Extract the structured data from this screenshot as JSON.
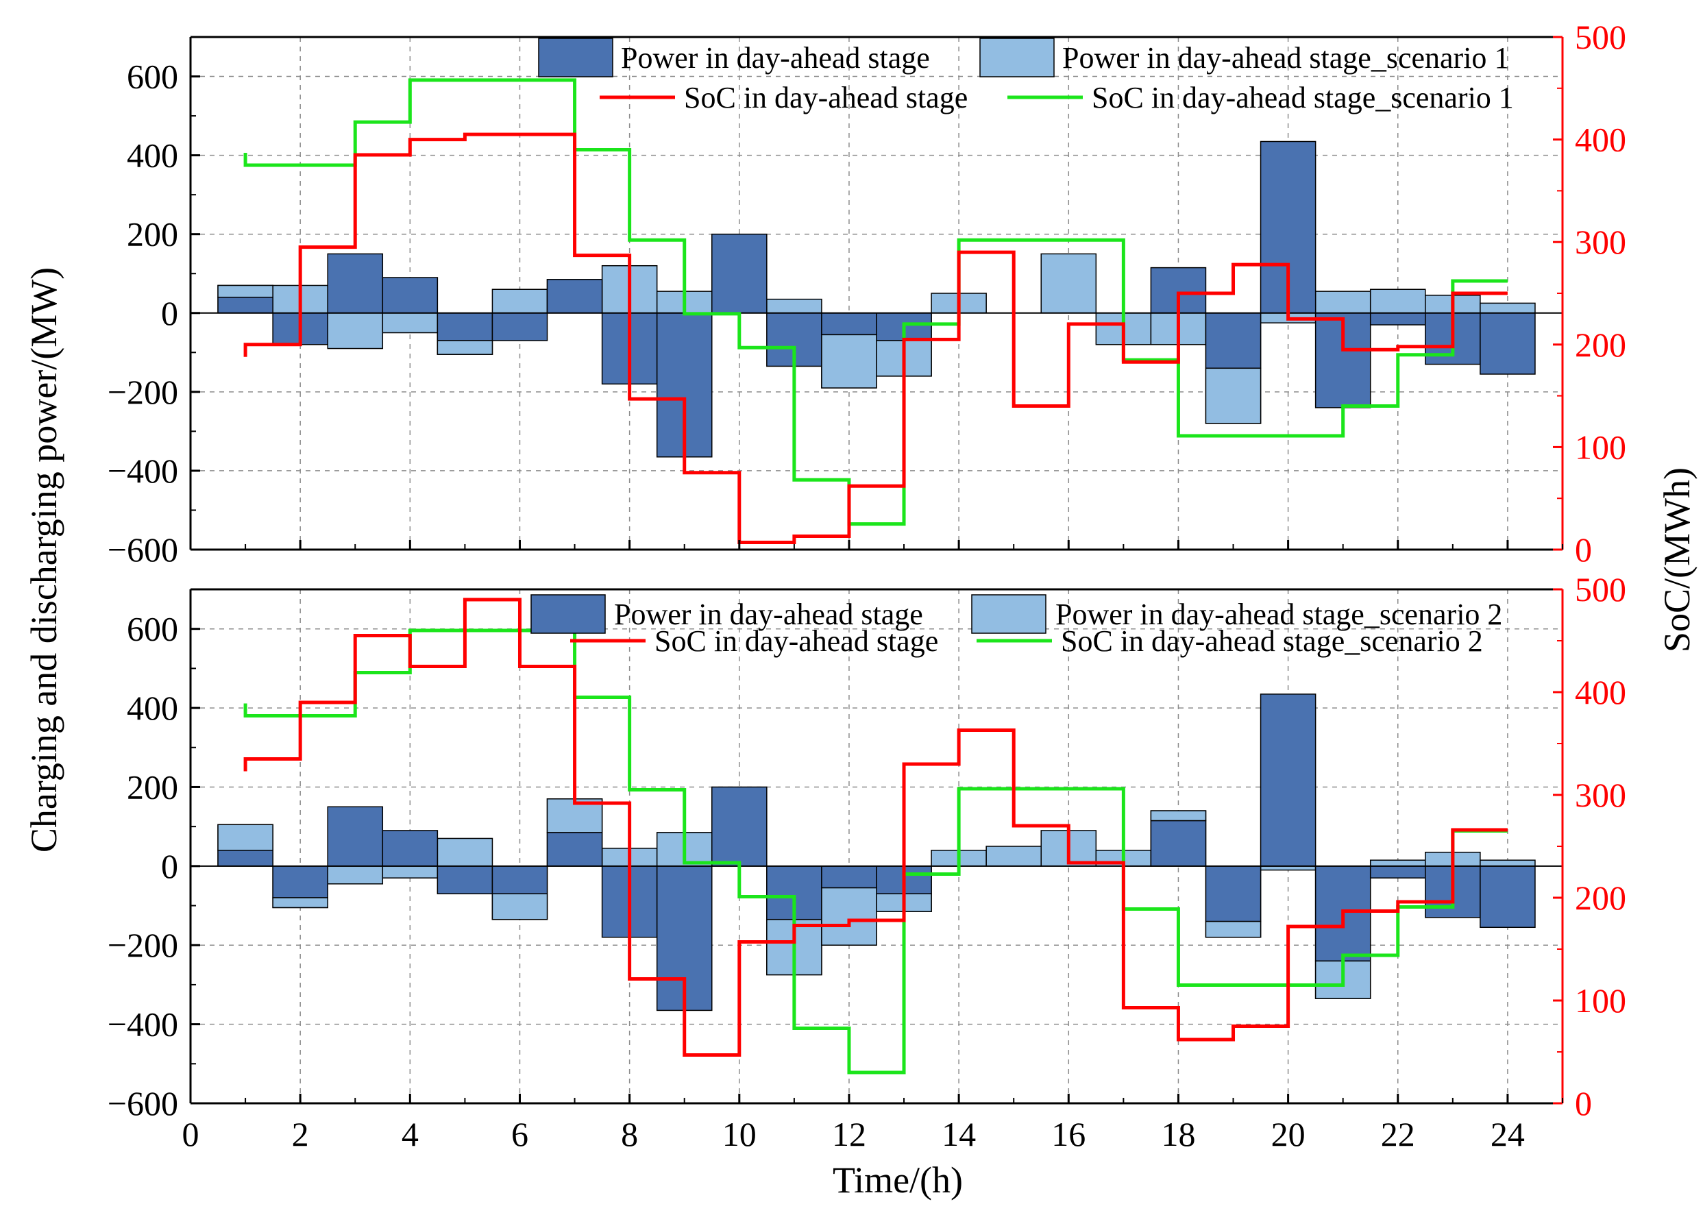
{
  "chart_data": {
    "type": "bar",
    "x_label": "Time/(h)",
    "y_left_label": "Charging and discharging power/(MW)",
    "y_right_label": "SoC/(MWh)",
    "x_ticks": [
      "0",
      "2",
      "4",
      "6",
      "8",
      "10",
      "12",
      "14",
      "16",
      "18",
      "20",
      "22",
      "24"
    ],
    "y_left_ticks": [
      "600",
      "400",
      "200",
      "0",
      "−200",
      "−400",
      "−600"
    ],
    "y_right_ticks": [
      "500",
      "400",
      "300",
      "200",
      "100",
      "0"
    ],
    "xlim": [
      0,
      25
    ],
    "ylim_left": [
      -600,
      700
    ],
    "ylim_right": [
      0,
      500
    ],
    "grid": true,
    "colors": {
      "dark_bar": "#4a72b0",
      "light_bar": "#92bde2",
      "soc": "#ff0000",
      "soc_scenario": "#1be51b",
      "right_axis": "#ff0000"
    },
    "panels": [
      {
        "legend": {
          "dark_bar": "Power in day-ahead stage",
          "light_bar": "Power in day-ahead stage_scenario 1",
          "soc": "SoC in day-ahead stage",
          "soc_scenario": "SoC in day-ahead stage_scenario 1"
        },
        "hours": [
          1,
          2,
          3,
          4,
          5,
          6,
          7,
          8,
          9,
          10,
          11,
          12,
          13,
          14,
          15,
          16,
          17,
          18,
          19,
          20,
          21,
          22,
          23,
          24
        ],
        "power_day_ahead": [
          40,
          -80,
          150,
          90,
          -70,
          -70,
          85,
          -180,
          -365,
          200,
          -135,
          -55,
          -70,
          0,
          0,
          0,
          0,
          115,
          -140,
          435,
          -240,
          -30,
          -130,
          -155
        ],
        "power_scenario": [
          70,
          70,
          -90,
          -50,
          -105,
          60,
          85,
          120,
          55,
          0,
          35,
          -190,
          -160,
          50,
          0,
          150,
          -80,
          -80,
          -280,
          -25,
          55,
          60,
          45,
          25
        ],
        "soc_day_ahead": [
          200,
          295,
          385,
          400,
          405,
          405,
          287,
          147,
          75,
          7,
          13,
          62,
          205,
          290,
          140,
          220,
          183,
          250,
          278,
          225,
          195,
          198,
          250,
          250
        ],
        "soc_scenario": [
          375,
          375,
          417,
          458,
          458,
          458,
          390,
          302,
          230,
          197,
          68,
          25,
          220,
          302,
          302,
          302,
          185,
          111,
          111,
          111,
          140,
          190,
          262,
          262
        ]
      },
      {
        "legend": {
          "dark_bar": "Power in day-ahead stage",
          "light_bar": "Power in day-ahead stage_scenario 2",
          "soc": "SoC in day-ahead stage",
          "soc_scenario": "SoC in day-ahead stage_scenario 2"
        },
        "hours": [
          1,
          2,
          3,
          4,
          5,
          6,
          7,
          8,
          9,
          10,
          11,
          12,
          13,
          14,
          15,
          16,
          17,
          18,
          19,
          20,
          21,
          22,
          23,
          24
        ],
        "power_day_ahead": [
          40,
          -80,
          150,
          90,
          -70,
          -70,
          85,
          -180,
          -365,
          200,
          -135,
          -55,
          -70,
          0,
          0,
          0,
          0,
          115,
          -140,
          435,
          -240,
          -30,
          -130,
          -155
        ],
        "power_scenario": [
          105,
          -105,
          -45,
          -30,
          70,
          -135,
          170,
          45,
          85,
          0,
          -275,
          -200,
          -115,
          40,
          50,
          90,
          40,
          140,
          -180,
          -10,
          -335,
          15,
          35,
          15
        ],
        "soc_day_ahead": [
          335,
          390,
          455,
          425,
          490,
          425,
          292,
          121,
          47,
          157,
          173,
          178,
          330,
          363,
          270,
          234,
          93,
          62,
          75,
          172,
          187,
          196,
          266,
          266
        ],
        "soc_scenario": [
          377,
          377,
          419,
          460,
          460,
          460,
          395,
          305,
          234,
          201,
          73,
          30,
          223,
          306,
          306,
          306,
          189,
          115,
          115,
          115,
          144,
          191,
          265,
          265
        ]
      }
    ]
  }
}
